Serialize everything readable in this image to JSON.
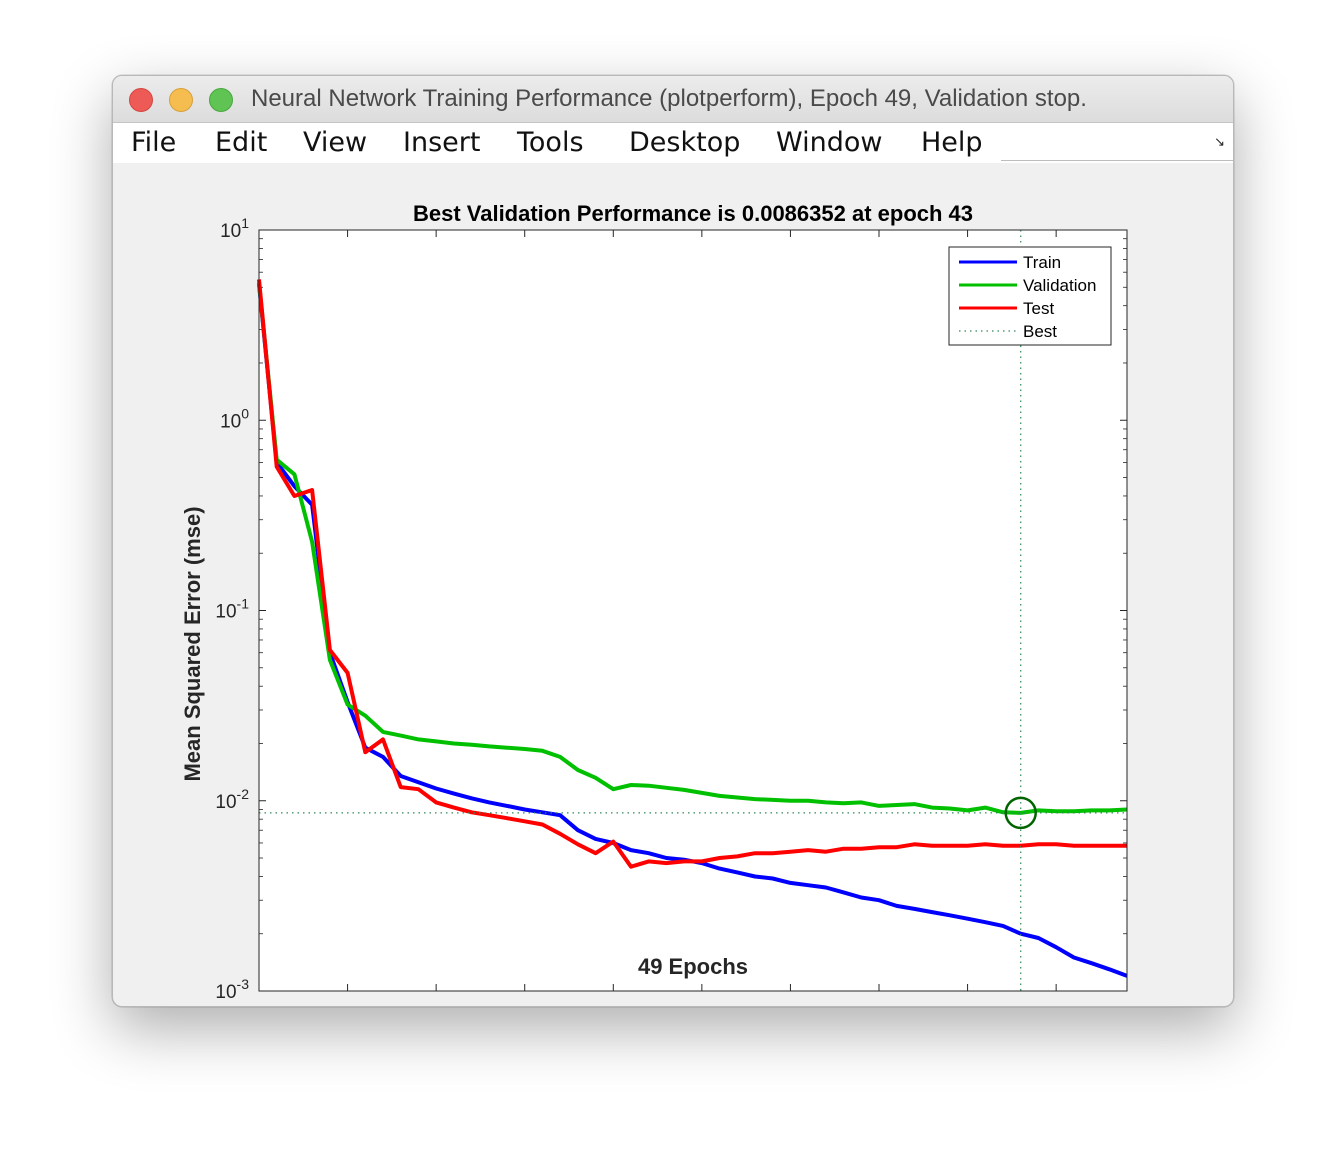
{
  "window": {
    "title": "Neural Network Training Performance (plotperform), Epoch 49, Validation stop."
  },
  "menu": [
    "File",
    "Edit",
    "View",
    "Insert",
    "Tools",
    "Desktop",
    "Window",
    "Help"
  ],
  "chart_data": {
    "type": "line",
    "title": "Best Validation Performance is 0.0086352 at epoch 43",
    "xlabel": "49 Epochs",
    "ylabel": "Mean Squared Error  (mse)",
    "xlim": [
      0,
      49
    ],
    "ylim": [
      0.001,
      10
    ],
    "y_scale": "log",
    "x_ticks": [
      0,
      5,
      10,
      15,
      20,
      25,
      30,
      35,
      40,
      45
    ],
    "y_ticks": [
      {
        "base": "10",
        "exp": "1"
      },
      {
        "base": "10",
        "exp": "0"
      },
      {
        "base": "10",
        "exp": "-1"
      },
      {
        "base": "10",
        "exp": "-2"
      },
      {
        "base": "10",
        "exp": "-3"
      }
    ],
    "legend_position": "top-right",
    "best_epoch": 43,
    "best_value": 0.0086352,
    "series": [
      {
        "name": "Train",
        "color": "#0000ff",
        "x": [
          0,
          1,
          2,
          3,
          4,
          5,
          6,
          7,
          8,
          9,
          10,
          11,
          12,
          13,
          14,
          15,
          16,
          17,
          18,
          19,
          20,
          21,
          22,
          23,
          24,
          25,
          26,
          27,
          28,
          29,
          30,
          31,
          32,
          33,
          34,
          35,
          36,
          37,
          38,
          39,
          40,
          41,
          42,
          43,
          44,
          45,
          46,
          47,
          48,
          49
        ],
        "values": [
          5.2,
          0.6,
          0.45,
          0.36,
          0.06,
          0.033,
          0.019,
          0.017,
          0.0135,
          0.0125,
          0.0116,
          0.0109,
          0.0103,
          0.0098,
          0.0094,
          0.009,
          0.0087,
          0.0084,
          0.007,
          0.0063,
          0.006,
          0.0055,
          0.0053,
          0.005,
          0.0049,
          0.0047,
          0.0044,
          0.0042,
          0.004,
          0.0039,
          0.0037,
          0.0036,
          0.0035,
          0.0033,
          0.0031,
          0.003,
          0.0028,
          0.0027,
          0.0026,
          0.0025,
          0.0024,
          0.0023,
          0.0022,
          0.002,
          0.0019,
          0.0017,
          0.0015,
          0.0014,
          0.0013,
          0.0012
        ]
      },
      {
        "name": "Validation",
        "color": "#00c000",
        "x": [
          0,
          1,
          2,
          3,
          4,
          5,
          6,
          7,
          8,
          9,
          10,
          11,
          12,
          13,
          14,
          15,
          16,
          17,
          18,
          19,
          20,
          21,
          22,
          23,
          24,
          25,
          26,
          27,
          28,
          29,
          30,
          31,
          32,
          33,
          34,
          35,
          36,
          37,
          38,
          39,
          40,
          41,
          42,
          43,
          44,
          45,
          46,
          47,
          48,
          49
        ],
        "values": [
          5.3,
          0.62,
          0.52,
          0.23,
          0.055,
          0.032,
          0.028,
          0.023,
          0.022,
          0.021,
          0.0205,
          0.02,
          0.0197,
          0.0193,
          0.019,
          0.0187,
          0.0183,
          0.017,
          0.0145,
          0.0132,
          0.0115,
          0.0121,
          0.012,
          0.0117,
          0.0114,
          0.011,
          0.0106,
          0.0104,
          0.0102,
          0.0101,
          0.01,
          0.01,
          0.0098,
          0.0097,
          0.0098,
          0.0094,
          0.0095,
          0.0096,
          0.0092,
          0.0091,
          0.0089,
          0.0092,
          0.0087,
          0.0086352,
          0.0089,
          0.0088,
          0.0088,
          0.0089,
          0.0089,
          0.009
        ]
      },
      {
        "name": "Test",
        "color": "#ff0000",
        "x": [
          0,
          1,
          2,
          3,
          4,
          5,
          6,
          7,
          8,
          9,
          10,
          11,
          12,
          13,
          14,
          15,
          16,
          17,
          18,
          19,
          20,
          21,
          22,
          23,
          24,
          25,
          26,
          27,
          28,
          29,
          30,
          31,
          32,
          33,
          34,
          35,
          36,
          37,
          38,
          39,
          40,
          41,
          42,
          43,
          44,
          45,
          46,
          47,
          48,
          49
        ],
        "values": [
          5.5,
          0.57,
          0.4,
          0.43,
          0.062,
          0.047,
          0.018,
          0.021,
          0.0118,
          0.0115,
          0.0098,
          0.0092,
          0.0087,
          0.0084,
          0.0081,
          0.0078,
          0.0075,
          0.0067,
          0.0059,
          0.0053,
          0.0061,
          0.0045,
          0.0048,
          0.0047,
          0.0048,
          0.0048,
          0.005,
          0.0051,
          0.0053,
          0.0053,
          0.0054,
          0.0055,
          0.0054,
          0.0056,
          0.0056,
          0.0057,
          0.0057,
          0.0059,
          0.0058,
          0.0058,
          0.0058,
          0.0059,
          0.0058,
          0.0058,
          0.0059,
          0.0059,
          0.0058,
          0.0058,
          0.0058,
          0.0058
        ]
      },
      {
        "name": "Best",
        "color": "#2e8b57",
        "style": "dotted"
      }
    ]
  }
}
